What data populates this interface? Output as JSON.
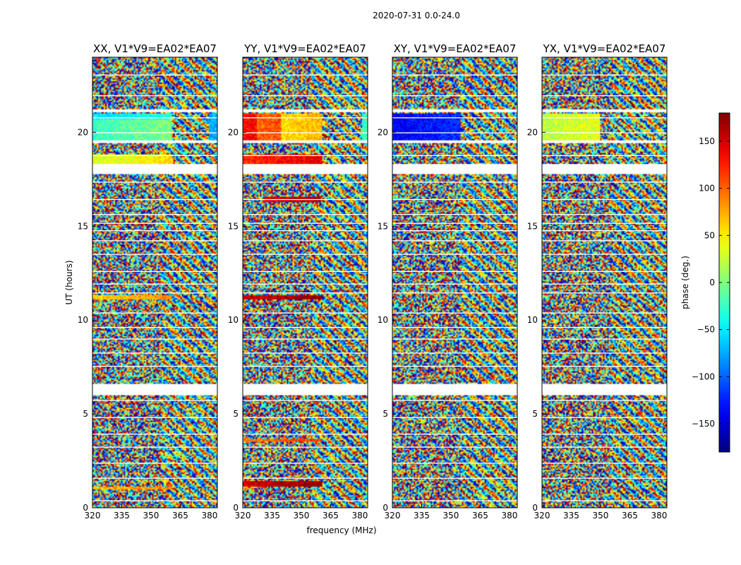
{
  "chart_data": {
    "type": "heatmap",
    "title": "2020-07-31 0.0-24.0",
    "xlabel": "frequency (MHz)",
    "ylabel": "UT (hours)",
    "xlim": [
      320,
      384
    ],
    "ylim": [
      0,
      24
    ],
    "xticks": [
      "320",
      "335",
      "350",
      "365",
      "380"
    ],
    "yticks": [
      "0",
      "5",
      "10",
      "15",
      "20"
    ],
    "colorbar": {
      "label": "phase (deg.)",
      "range": [
        -180,
        180
      ],
      "colormap": "jet",
      "ticks": [
        "−150",
        "−100",
        "−50",
        "0",
        "50",
        "100",
        "150"
      ]
    },
    "panels": [
      {
        "title": "XX, V1*V9=EA02*EA07",
        "coherent_regions": [
          {
            "t": [
              19.6,
              20.7
            ],
            "f": [
              320,
              361
            ],
            "phase": -25
          },
          {
            "t": [
              20.7,
              21.0
            ],
            "f": [
              320,
              361
            ],
            "phase": -55
          },
          {
            "t": [
              19.6,
              21.0
            ],
            "f": [
              380,
              384
            ],
            "phase": -110
          },
          {
            "t": [
              18.3,
              18.8
            ],
            "f": [
              320,
              361
            ],
            "phase": 30
          },
          {
            "t": [
              11.1,
              11.3
            ],
            "f": [
              320,
              361
            ],
            "phase": 60
          },
          {
            "t": [
              1.0,
              1.1
            ],
            "f": [
              320,
              361
            ],
            "phase": 65
          }
        ]
      },
      {
        "title": "YY, V1*V9=EA02*EA07",
        "coherent_regions": [
          {
            "t": [
              19.6,
              21.0
            ],
            "f": [
              320,
              327
            ],
            "phase": 130
          },
          {
            "t": [
              19.6,
              21.0
            ],
            "f": [
              327,
              340
            ],
            "phase": 95
          },
          {
            "t": [
              19.6,
              21.0
            ],
            "f": [
              340,
              361
            ],
            "phase": 45
          },
          {
            "t": [
              19.6,
              21.0
            ],
            "f": [
              381,
              384
            ],
            "phase": -60
          },
          {
            "t": [
              18.3,
              18.8
            ],
            "f": [
              320,
              361
            ],
            "phase": 120
          },
          {
            "t": [
              16.3,
              16.6
            ],
            "f": [
              330,
              360
            ],
            "phase": 140
          },
          {
            "t": [
              11.1,
              11.3
            ],
            "f": [
              320,
              361
            ],
            "phase": 150
          },
          {
            "t": [
              3.5,
              3.7
            ],
            "f": [
              320,
              361
            ],
            "phase": 90
          },
          {
            "t": [
              1.1,
              1.4
            ],
            "f": [
              320,
              361
            ],
            "phase": 150
          }
        ]
      },
      {
        "title": "XY, V1*V9=EA02*EA07",
        "coherent_regions": [
          {
            "t": [
              19.6,
              21.0
            ],
            "f": [
              320,
              355
            ],
            "phase": -140
          }
        ]
      },
      {
        "title": "YX, V1*V9=EA02*EA07",
        "coherent_regions": [
          {
            "t": [
              19.6,
              21.0
            ],
            "f": [
              320,
              350
            ],
            "phase": 20
          }
        ]
      }
    ],
    "flagged_time_ranges": [
      [
        17.8,
        18.3
      ],
      [
        6.0,
        6.6
      ],
      [
        21.1,
        21.25
      ],
      [
        19.45,
        19.55
      ]
    ]
  }
}
